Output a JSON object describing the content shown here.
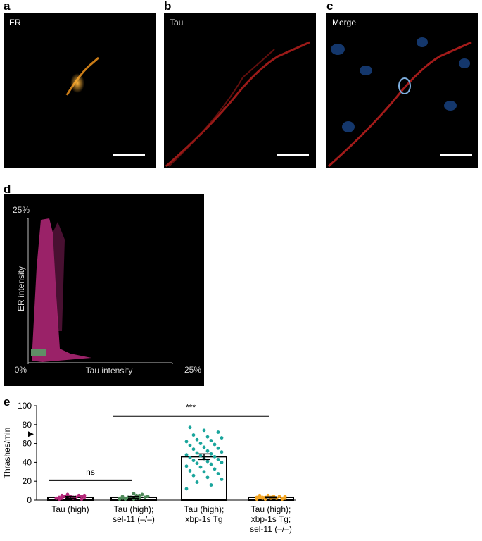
{
  "panels": [
    {
      "letter": "a",
      "label": "ER"
    },
    {
      "letter": "b",
      "label": "Tau"
    },
    {
      "letter": "c",
      "label": "Merge"
    }
  ],
  "chart_data": [
    {
      "type": "density",
      "letter": "d",
      "x_label": "Tau intensity",
      "y_label": "ER intensity",
      "xlim": [
        0,
        25
      ],
      "ylim": [
        0,
        25
      ],
      "xticks": [
        {
          "value": 0,
          "label": "0%"
        },
        {
          "value": 25,
          "label": "25%"
        }
      ],
      "yticks": [
        {
          "value": 25,
          "label": "25%"
        }
      ]
    },
    {
      "type": "bar",
      "letter": "e",
      "y_label": "Thrashes/min",
      "categories": [
        [
          "Tau (high)"
        ],
        [
          "Tau (high);",
          "sel-11 (–/–)"
        ],
        [
          "Tau (high);",
          "xbp-1s Tg"
        ],
        [
          "Tau (high);",
          "xbp-1s Tg;",
          "sel-11 (–/–)"
        ]
      ],
      "values": [
        3,
        3,
        46,
        3
      ],
      "errors": [
        1,
        1,
        3,
        0.5
      ],
      "colors": [
        "#b5287a",
        "#4f8a5a",
        "#1aa59c",
        "#f5a623"
      ],
      "points": [
        [
          2,
          3,
          4,
          5,
          3,
          2,
          1,
          4,
          3,
          5,
          6,
          2,
          3,
          4,
          3,
          2,
          5,
          4,
          3,
          1
        ],
        [
          1,
          2,
          3,
          4,
          5,
          2,
          3,
          1,
          4,
          6,
          3,
          2,
          5,
          3,
          4,
          2,
          1,
          3,
          7,
          2
        ],
        [
          12,
          16,
          19,
          22,
          24,
          26,
          28,
          30,
          31,
          33,
          35,
          36,
          38,
          39,
          40,
          41,
          42,
          43,
          44,
          45,
          46,
          47,
          48,
          49,
          50,
          51,
          52,
          54,
          55,
          56,
          58,
          59,
          60,
          62,
          63,
          64,
          66,
          67,
          69,
          72,
          74,
          77
        ],
        [
          1,
          2,
          3,
          4,
          3,
          2,
          1,
          2,
          3,
          4,
          5,
          3,
          2,
          1,
          2,
          4,
          3,
          2,
          3,
          5
        ]
      ],
      "ylim": [
        0,
        100
      ],
      "yticks": [
        0,
        20,
        40,
        60,
        80,
        100
      ],
      "annotations": [
        {
          "text": "ns",
          "from": 0,
          "to": 1,
          "y": 21
        },
        {
          "text": "***",
          "from": 1,
          "to": 3,
          "y": 89
        }
      ],
      "reference_marker": 70
    }
  ]
}
